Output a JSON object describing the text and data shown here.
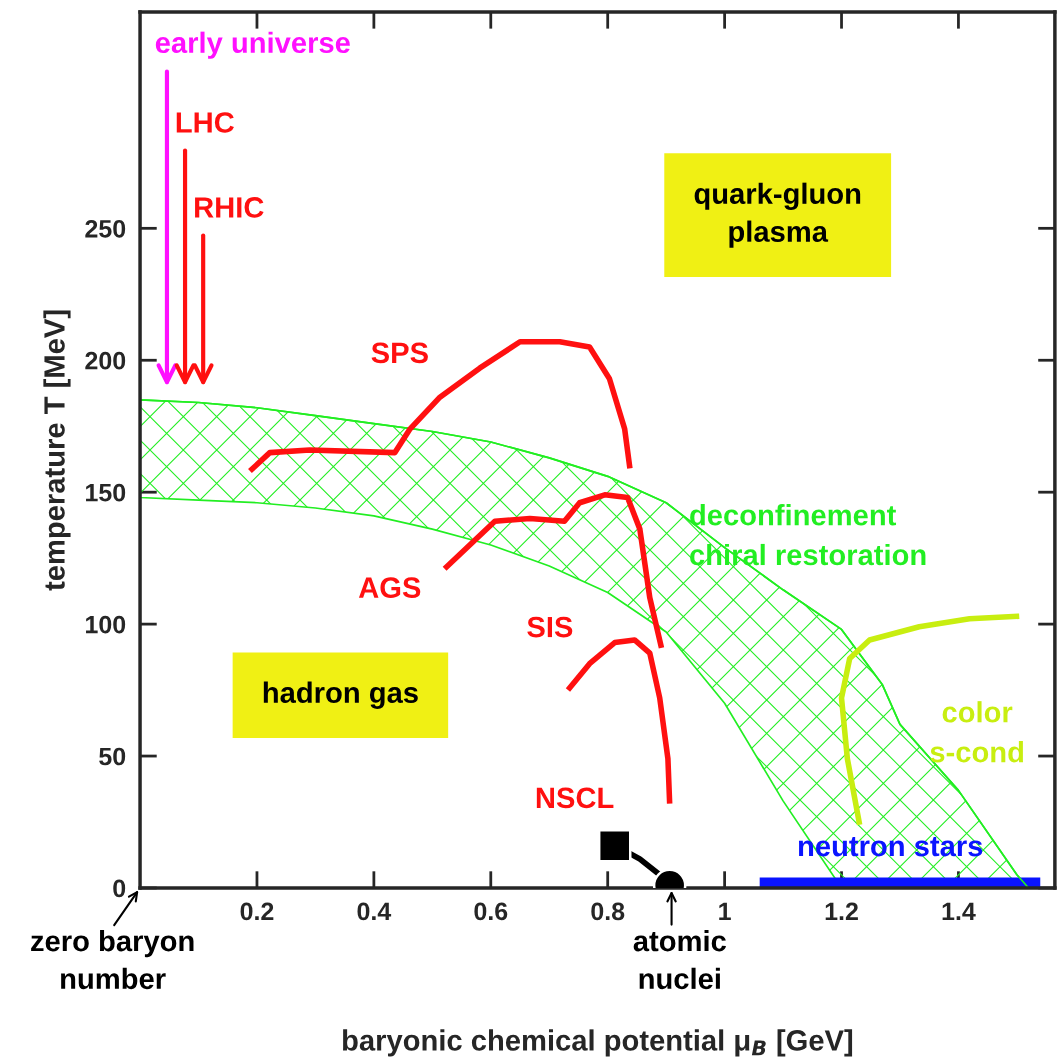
{
  "chart_data": {
    "type": "line",
    "xlabel": "baryonic chemical potential μ$_{B}$ [GeV]",
    "ylabel": "temperature T [MeV]",
    "xlim": [
      0,
      1.565
    ],
    "ylim": [
      0,
      332
    ],
    "xticks": [
      0.2,
      0.4,
      0.6,
      0.8,
      1,
      1.2,
      1.4
    ],
    "yticks": [
      0,
      50,
      100,
      150,
      200,
      250
    ],
    "grid": false,
    "series": [
      {
        "name": "deconfinement\nchiral restoration",
        "color": "#22ee22",
        "x": [
          0,
          0.1,
          0.2,
          0.3,
          0.4,
          0.5,
          0.6,
          0.7,
          0.8,
          0.9,
          1.0,
          1.1,
          1.2,
          1.27,
          1.3,
          1.4,
          1.5,
          1.52
        ],
        "values": [
          185,
          184,
          182,
          179,
          176,
          173,
          169,
          163,
          156,
          146,
          129,
          113,
          98,
          77,
          62,
          37,
          5,
          0
        ],
        "upper": [
          185,
          184,
          182,
          179,
          176,
          173,
          169,
          163,
          156,
          146,
          129,
          113,
          98,
          77,
          62,
          37,
          5,
          0
        ],
        "lower": [
          148,
          147,
          146,
          144,
          141,
          136,
          130,
          122,
          112,
          97,
          70,
          33,
          0,
          0,
          0,
          0,
          0,
          0
        ]
      },
      {
        "name": "SPS",
        "color": "#ff1010",
        "x": [
          0.188,
          0.222,
          0.29,
          0.436,
          0.462,
          0.513,
          0.581,
          0.65,
          0.718,
          0.769,
          0.803,
          0.829,
          0.838
        ],
        "values": [
          158,
          165,
          166,
          165,
          174,
          186,
          197,
          207,
          207,
          205,
          193,
          174,
          159
        ]
      },
      {
        "name": "AGS",
        "color": "#ff1010",
        "x": [
          0.521,
          0.564,
          0.607,
          0.667,
          0.726,
          0.752,
          0.795,
          0.834,
          0.855,
          0.872,
          0.892
        ],
        "values": [
          121,
          130,
          139,
          140,
          139,
          146,
          149,
          148,
          136,
          110,
          91
        ]
      },
      {
        "name": "SIS",
        "color": "#ff1010",
        "x": [
          0.732,
          0.769,
          0.812,
          0.846,
          0.872,
          0.889,
          0.903,
          0.906
        ],
        "values": [
          75,
          85,
          93,
          94,
          89,
          72,
          49,
          32
        ]
      },
      {
        "color": "#000000",
        "x": [
          0.83,
          0.855,
          0.889,
          0.906
        ],
        "values": [
          14,
          11,
          5,
          1
        ]
      },
      {
        "type": "scatter",
        "color": "#000000",
        "marker": "square",
        "x": [
          0.812
        ],
        "values": [
          16
        ]
      },
      {
        "type": "scatter",
        "color": "#000000",
        "marker": "circle",
        "x": [
          0.906
        ],
        "values": [
          1
        ]
      },
      {
        "name": "color\ns-cond",
        "color": "#c8ee10",
        "x": [
          1.231,
          1.21,
          1.2,
          1.214,
          1.248,
          1.333,
          1.419,
          1.504
        ],
        "values": [
          24,
          49,
          72,
          87,
          94,
          99,
          102,
          103
        ]
      },
      {
        "name": "neutron stars",
        "type": "area",
        "color": "#0a14ff",
        "x": [
          1.06,
          1.54
        ],
        "values": [
          4,
          4
        ]
      }
    ],
    "annotations": [
      "early universe",
      "LHC",
      "RHIC",
      "quark-gluon\nplasma",
      "hadron gas",
      "NSCL",
      "zero baryon\nnumber",
      "atomic\nnuclei"
    ]
  }
}
